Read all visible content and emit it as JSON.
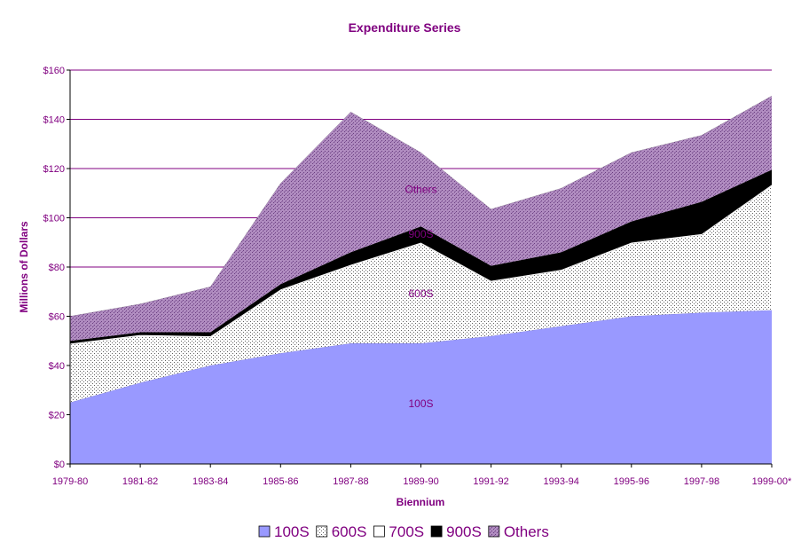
{
  "chart_data": {
    "type": "area",
    "stacked": true,
    "title": "Expenditure Series",
    "xlabel": "Biennium",
    "ylabel": "Millions of Dollars",
    "categories": [
      "1979-80",
      "1981-82",
      "1983-84",
      "1985-86",
      "1987-88",
      "1989-90",
      "1991-92",
      "1993-94",
      "1995-96",
      "1997-98",
      "1999-00*"
    ],
    "y_ticks": [
      "$0",
      "$20",
      "$40",
      "$60",
      "$80",
      "$100",
      "$120",
      "$140",
      "$160"
    ],
    "ylim": [
      0,
      160
    ],
    "grid": true,
    "legend_position": "bottom",
    "series": [
      {
        "name": "100S",
        "color": "#9999ff",
        "fill": "solid",
        "area_label": "100S",
        "values": [
          25,
          33,
          40,
          45,
          49,
          49,
          52,
          56,
          60,
          61.5,
          62.5
        ]
      },
      {
        "name": "600S",
        "color": "#c0c0c0",
        "fill": "crosshatch",
        "area_label": "600S",
        "values": [
          23.5,
          19,
          11.5,
          25.5,
          31.5,
          40.5,
          22,
          22.5,
          29.5,
          31.5,
          50.5
        ]
      },
      {
        "name": "700S",
        "color": "#ffffff",
        "fill": "solid",
        "area_label": "",
        "values": [
          0.5,
          0.5,
          0.5,
          0.5,
          0.5,
          0.5,
          0.5,
          0.5,
          0.5,
          0.5,
          0.5
        ]
      },
      {
        "name": "900S",
        "color": "#000000",
        "fill": "solid",
        "area_label": "900S",
        "values": [
          1,
          1,
          1.5,
          2,
          5,
          6.5,
          6,
          7,
          8.5,
          13,
          6
        ]
      },
      {
        "name": "Others",
        "color": "#9966aa",
        "fill": "diagonal",
        "area_label": "Others",
        "values": [
          10,
          11.5,
          18.5,
          41,
          57,
          30,
          23,
          26,
          28,
          27,
          30
        ]
      }
    ]
  }
}
